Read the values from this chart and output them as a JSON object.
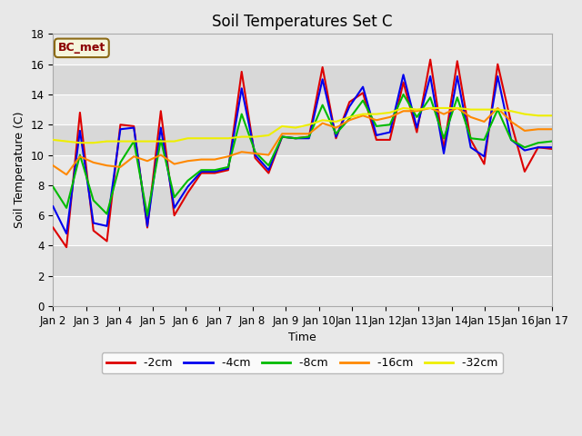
{
  "title": "Soil Temperatures Set C",
  "xlabel": "Time",
  "ylabel": "Soil Temperature (C)",
  "ylim": [
    0,
    18
  ],
  "yticks": [
    0,
    2,
    4,
    6,
    8,
    10,
    12,
    14,
    16,
    18
  ],
  "x_labels": [
    "Jan 2",
    "Jan 3",
    "Jan 4",
    "Jan 5",
    "Jan 6",
    "Jan 7",
    "Jan 8",
    "Jan 9",
    "Jan 10",
    "Jan 11",
    "Jan 12",
    "Jan 13",
    "Jan 14",
    "Jan 15",
    "Jan 16",
    "Jan 17"
  ],
  "annotation_text": "BC_met",
  "series": {
    "-2cm": {
      "color": "#dd0000",
      "lw": 1.5,
      "values": [
        5.2,
        3.9,
        12.8,
        5.0,
        4.3,
        12.0,
        11.9,
        5.2,
        12.9,
        6.0,
        7.5,
        8.8,
        8.8,
        9.0,
        15.5,
        9.8,
        8.8,
        11.2,
        11.1,
        11.2,
        15.8,
        11.1,
        13.5,
        14.1,
        11.0,
        11.0,
        14.8,
        11.5,
        16.3,
        10.4,
        16.2,
        11.0,
        9.4,
        16.0,
        12.1,
        8.9,
        10.5,
        10.4
      ]
    },
    "-4cm": {
      "color": "#0000ee",
      "lw": 1.5,
      "values": [
        6.6,
        4.8,
        11.6,
        5.5,
        5.3,
        11.7,
        11.8,
        5.3,
        11.8,
        6.5,
        7.9,
        8.9,
        8.9,
        9.1,
        14.4,
        10.0,
        9.0,
        11.2,
        11.1,
        11.1,
        15.0,
        11.2,
        13.2,
        14.5,
        11.3,
        11.5,
        15.3,
        11.8,
        15.2,
        10.1,
        15.2,
        10.5,
        9.9,
        15.2,
        11.0,
        10.3,
        10.5,
        10.5
      ]
    },
    "-8cm": {
      "color": "#00bb00",
      "lw": 1.5,
      "values": [
        7.9,
        6.5,
        10.0,
        7.0,
        6.1,
        9.5,
        10.9,
        6.0,
        11.0,
        7.2,
        8.3,
        9.0,
        9.0,
        9.2,
        12.7,
        10.2,
        9.3,
        11.2,
        11.1,
        11.2,
        13.3,
        11.4,
        12.4,
        13.6,
        11.9,
        12.0,
        14.0,
        12.5,
        13.8,
        11.1,
        13.8,
        11.1,
        11.0,
        13.0,
        11.0,
        10.5,
        10.8,
        10.9
      ]
    },
    "-16cm": {
      "color": "#ff8800",
      "lw": 1.5,
      "values": [
        9.3,
        8.7,
        9.9,
        9.5,
        9.3,
        9.2,
        9.9,
        9.6,
        10.0,
        9.4,
        9.6,
        9.7,
        9.7,
        9.9,
        10.2,
        10.1,
        10.0,
        11.4,
        11.4,
        11.4,
        12.1,
        11.8,
        12.3,
        12.6,
        12.3,
        12.5,
        12.9,
        12.9,
        13.1,
        12.7,
        13.1,
        12.5,
        12.2,
        13.1,
        12.2,
        11.6,
        11.7,
        11.7
      ]
    },
    "-32cm": {
      "color": "#eeee00",
      "lw": 1.5,
      "values": [
        11.0,
        10.9,
        10.8,
        10.8,
        10.9,
        10.9,
        10.9,
        10.9,
        10.9,
        10.9,
        11.1,
        11.1,
        11.1,
        11.1,
        11.2,
        11.2,
        11.3,
        11.9,
        11.8,
        12.0,
        12.3,
        12.2,
        12.5,
        12.7,
        12.7,
        12.8,
        13.1,
        13.0,
        13.1,
        13.1,
        13.1,
        13.0,
        13.0,
        13.0,
        12.9,
        12.7,
        12.6,
        12.6
      ]
    }
  },
  "band_colors": [
    "#e8e8e8",
    "#d8d8d8"
  ],
  "plot_bg": "#e8e8e8",
  "fig_bg": "#e8e8e8",
  "grid_color": "#ffffff",
  "title_fontsize": 12,
  "axis_label_fontsize": 9,
  "tick_fontsize": 8.5
}
